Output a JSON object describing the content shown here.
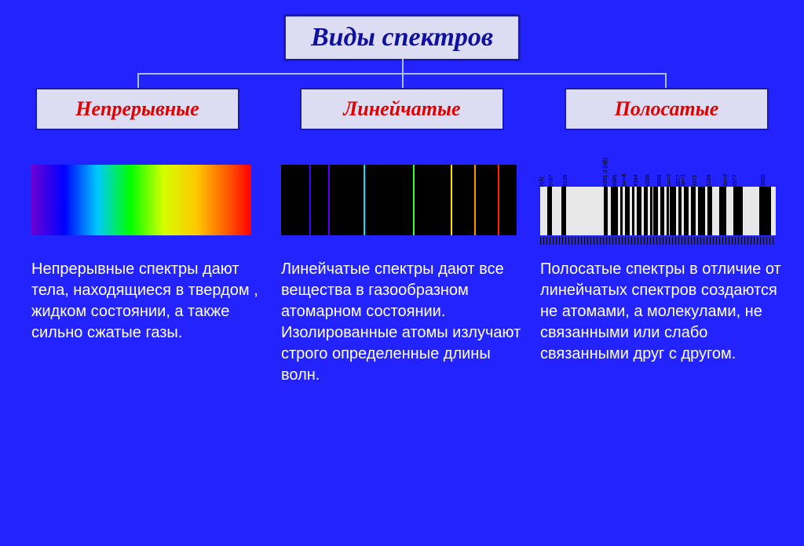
{
  "title": "Виды спектров",
  "categories": {
    "continuous": {
      "label": "Непрерывные"
    },
    "line": {
      "label": "Линейчатые"
    },
    "band": {
      "label": "Полосатые"
    }
  },
  "descriptions": {
    "continuous": "Непрерывные спектры дают тела, находящиеся в твердом , жидком состоянии, а также сильно сжатые газы.",
    "line": "Линейчатые спектры дают все вещества в газообразном атомарном состоянии. Изолированные атомы излучают строго определенные длины волн.",
    "band": "Полосатые спектры в отличие от линейчатых спектров создаются не атомами, а молекулами, не связанными или слабо связанными друг с другом."
  },
  "colors": {
    "background": "#2323ff",
    "box_bg": "#dcdcf2",
    "box_border": "#1a1ab0",
    "title_text": "#1010a0",
    "category_text": "#e00000",
    "desc_text": "#ffffff",
    "connector": "#aac0ff"
  },
  "line_spectrum": {
    "lines": [
      {
        "pos_pct": 12,
        "color": "#4400ff"
      },
      {
        "pos_pct": 20,
        "color": "#5500ff"
      },
      {
        "pos_pct": 35,
        "color": "#00e0ff"
      },
      {
        "pos_pct": 56,
        "color": "#30ff30"
      },
      {
        "pos_pct": 72,
        "color": "#ffe000"
      },
      {
        "pos_pct": 82,
        "color": "#ff9000"
      },
      {
        "pos_pct": 92,
        "color": "#ff2000"
      }
    ]
  },
  "band_spectrum": {
    "top_labels": [
      {
        "pos_pct": 2,
        "text": "λ(Å)"
      },
      {
        "pos_pct": 6,
        "text": "6787"
      },
      {
        "pos_pct": 12,
        "text": "6126"
      },
      {
        "pos_pct": 29,
        "text": "4861.3 (Hβ)"
      },
      {
        "pos_pct": 33,
        "text": "4685"
      },
      {
        "pos_pct": 37,
        "text": "Δn=8"
      },
      {
        "pos_pct": 42,
        "text": "4344"
      },
      {
        "pos_pct": 47,
        "text": "4059"
      },
      {
        "pos_pct": 52,
        "text": "3895"
      },
      {
        "pos_pct": 56,
        "text": "Δn=2"
      },
      {
        "pos_pct": 60,
        "text": "3577"
      },
      {
        "pos_pct": 62,
        "text": "Δn=1"
      },
      {
        "pos_pct": 67,
        "text": "3371"
      },
      {
        "pos_pct": 73,
        "text": "3159"
      },
      {
        "pos_pct": 80,
        "text": "Δn=2"
      },
      {
        "pos_pct": 84,
        "text": "2977"
      },
      {
        "pos_pct": 96,
        "text": "2820"
      }
    ],
    "bands": [
      {
        "left_pct": 3,
        "width_pct": 2
      },
      {
        "left_pct": 9,
        "width_pct": 2
      },
      {
        "left_pct": 27,
        "width_pct": 1.5
      },
      {
        "left_pct": 30,
        "width_pct": 3
      },
      {
        "left_pct": 34,
        "width_pct": 1
      },
      {
        "left_pct": 36,
        "width_pct": 2
      },
      {
        "left_pct": 39,
        "width_pct": 1
      },
      {
        "left_pct": 41,
        "width_pct": 2
      },
      {
        "left_pct": 44,
        "width_pct": 1.5
      },
      {
        "left_pct": 46.5,
        "width_pct": 1
      },
      {
        "left_pct": 48,
        "width_pct": 2
      },
      {
        "left_pct": 51,
        "width_pct": 1.5
      },
      {
        "left_pct": 53.5,
        "width_pct": 1
      },
      {
        "left_pct": 55,
        "width_pct": 2.5
      },
      {
        "left_pct": 58.5,
        "width_pct": 1.5
      },
      {
        "left_pct": 61,
        "width_pct": 2
      },
      {
        "left_pct": 64,
        "width_pct": 2
      },
      {
        "left_pct": 67,
        "width_pct": 3
      },
      {
        "left_pct": 71,
        "width_pct": 2
      },
      {
        "left_pct": 76,
        "width_pct": 3
      },
      {
        "left_pct": 82,
        "width_pct": 4
      },
      {
        "left_pct": 93,
        "width_pct": 5
      }
    ]
  }
}
